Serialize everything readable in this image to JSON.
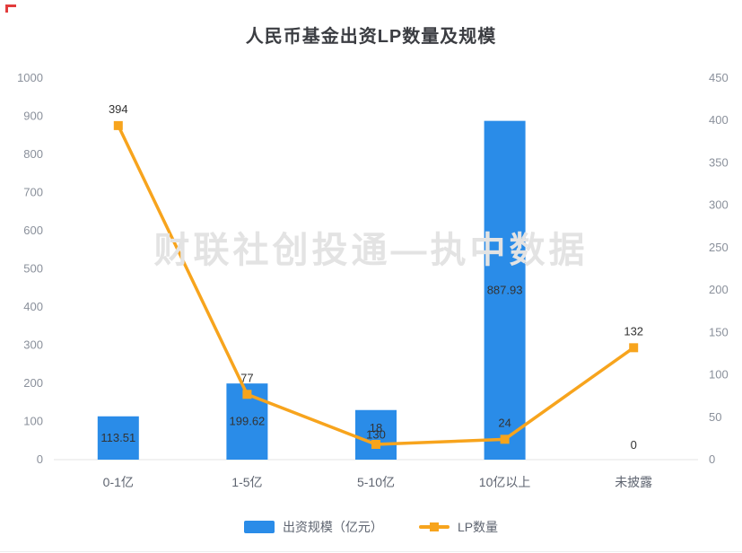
{
  "title": "人民币基金出资LP数量及规模",
  "watermark": "财联社创投通—执中数据",
  "legend": {
    "bar_label": "出资规模（亿元）",
    "line_label": "LP数量"
  },
  "colors": {
    "bar": "#2a8ce8",
    "line": "#f7a41d",
    "axis_text": "#8a909b",
    "category_text": "#5e6470",
    "label_text": "#333333",
    "watermark": "#e3e3e3"
  },
  "chart_data": {
    "type": "bar",
    "subtype": "bar+line dual-axis combo",
    "title": "人民币基金出资LP数量及规模",
    "categories": [
      "0-1亿",
      "1-5亿",
      "5-10亿",
      "10亿以上",
      "未披露"
    ],
    "series": [
      {
        "name": "出资规模（亿元）",
        "type": "bar",
        "axis": "left",
        "values": [
          113.51,
          199.62,
          130,
          887.93,
          0
        ]
      },
      {
        "name": "LP数量",
        "type": "line",
        "axis": "right",
        "values": [
          394,
          77,
          18,
          24,
          132
        ]
      }
    ],
    "left_axis": {
      "min": 0,
      "max": 1000,
      "step": 100
    },
    "right_axis": {
      "min": 0,
      "max": 450,
      "step": 50
    },
    "grid": false,
    "legend_position": "bottom"
  }
}
